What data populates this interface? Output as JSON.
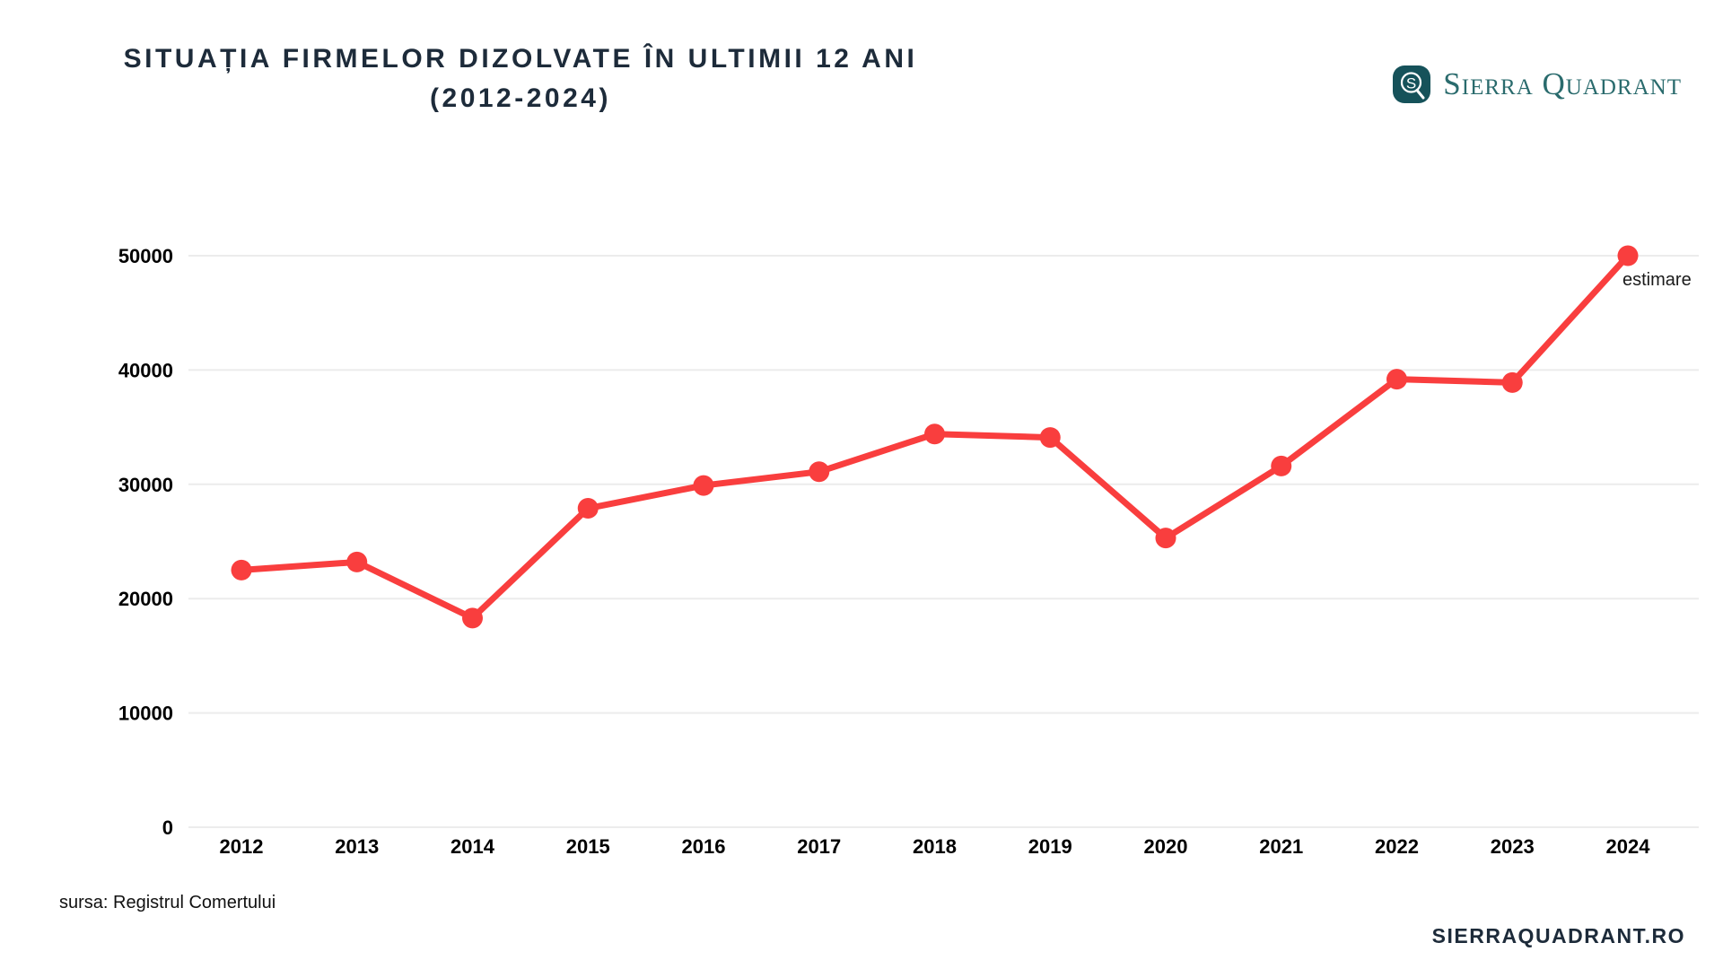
{
  "header": {
    "title_line1": "SITUAȚIA FIRMELOR DIZOLVATE ÎN ULTIMII 12 ANI",
    "title_line2": "(2012-2024)",
    "logo_text": "Sierra Quadrant",
    "logo_monogram": "S"
  },
  "chart_data": {
    "type": "line",
    "categories": [
      "2012",
      "2013",
      "2014",
      "2015",
      "2016",
      "2017",
      "2018",
      "2019",
      "2020",
      "2021",
      "2022",
      "2023",
      "2024"
    ],
    "values": [
      22500,
      23200,
      18300,
      27900,
      29900,
      31100,
      34400,
      34100,
      25300,
      31600,
      39200,
      38900,
      50000
    ],
    "yticks": [
      0,
      10000,
      20000,
      30000,
      40000,
      50000
    ],
    "ylim": [
      0,
      50000
    ],
    "grid": true,
    "legend": "none",
    "annotation": {
      "text": "estimare",
      "year": "2024"
    },
    "series_color": "#f93e3e",
    "grid_color": "#ececec",
    "tick_color": "#000000"
  },
  "footer": {
    "source": "sursa: Registrul Comertului",
    "website": "SIERRAQUADRANT.RO"
  },
  "colors": {
    "title": "#1d2b3a",
    "logo_teal": "#16525a",
    "logo_text_teal": "#2a6b6d"
  }
}
